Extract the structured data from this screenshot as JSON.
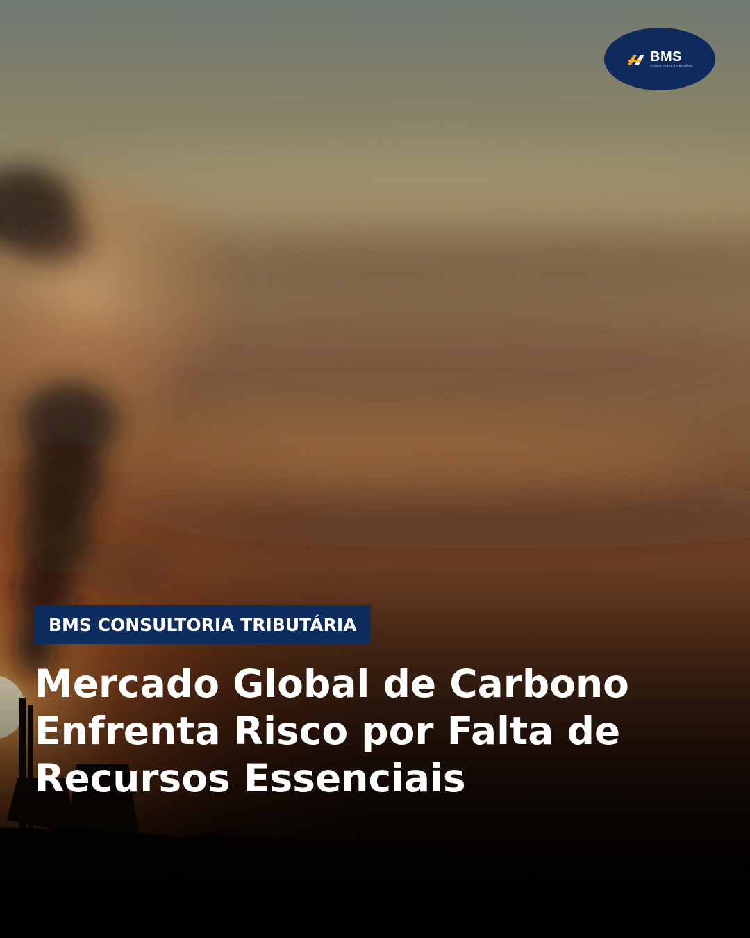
{
  "logo": {
    "mark_icon": "bms-chevron-mark-icon",
    "wordmark": "BMS",
    "subtitle": "CONSULTORIA TRIBUTÁRIA",
    "background_color": "#0f2a5c",
    "mark_color": "#f5a524"
  },
  "tag": {
    "label": "BMS CONSULTORIA TRIBUTÁRIA",
    "background_color": "#0f2c5e"
  },
  "headline": {
    "lines": [
      "Mercado Global de Carbono",
      "Enfrenta Risco por Falta de",
      "Recursos Essenciais"
    ]
  },
  "colors": {
    "text": "#ffffff",
    "sky_top": "#6f7a73",
    "sunset_orange": "#c2622a",
    "ground": "#020101"
  }
}
